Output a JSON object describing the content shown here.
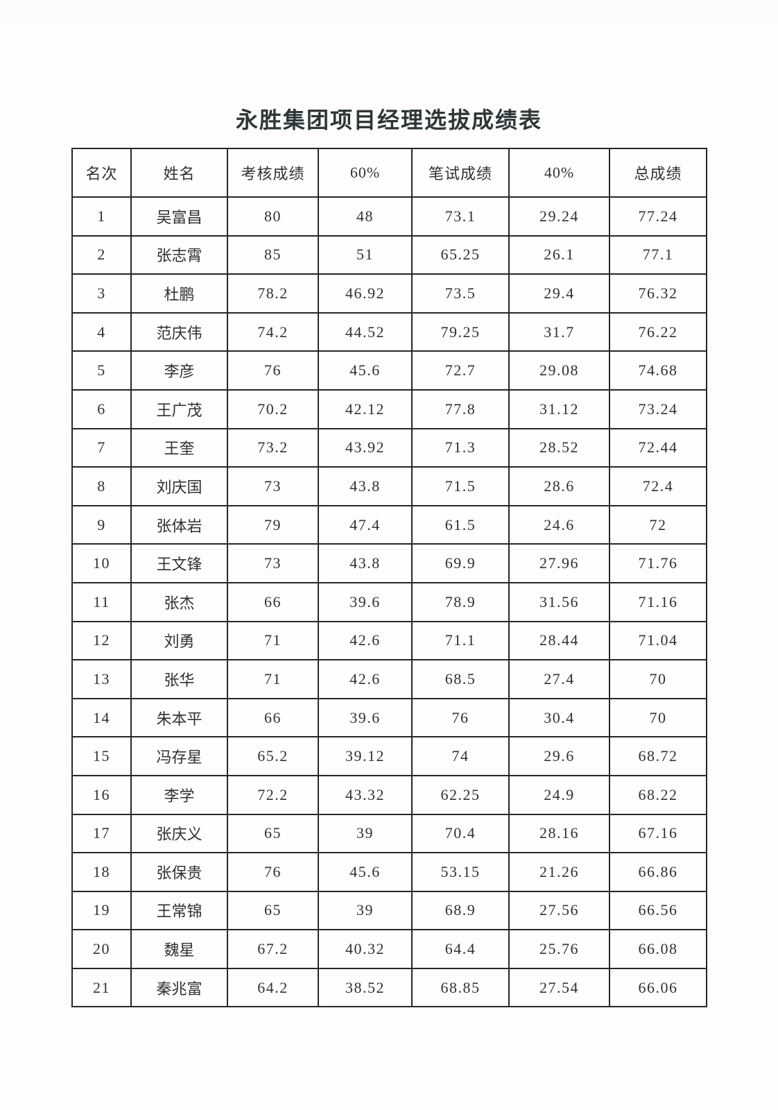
{
  "page": {
    "title": "永胜集团项目经理选拔成绩表"
  },
  "colors": {
    "paper": "#fdfdfd",
    "ink": "#303030",
    "border": "#262626"
  },
  "table": {
    "columns": [
      "名次",
      "姓名",
      "考核成绩",
      "60%",
      "笔试成绩",
      "40%",
      "总成绩"
    ],
    "rows": [
      [
        "1",
        "吴富昌",
        "80",
        "48",
        "73.1",
        "29.24",
        "77.24"
      ],
      [
        "2",
        "张志霄",
        "85",
        "51",
        "65.25",
        "26.1",
        "77.1"
      ],
      [
        "3",
        "杜鹏",
        "78.2",
        "46.92",
        "73.5",
        "29.4",
        "76.32"
      ],
      [
        "4",
        "范庆伟",
        "74.2",
        "44.52",
        "79.25",
        "31.7",
        "76.22"
      ],
      [
        "5",
        "李彦",
        "76",
        "45.6",
        "72.7",
        "29.08",
        "74.68"
      ],
      [
        "6",
        "王广茂",
        "70.2",
        "42.12",
        "77.8",
        "31.12",
        "73.24"
      ],
      [
        "7",
        "王奎",
        "73.2",
        "43.92",
        "71.3",
        "28.52",
        "72.44"
      ],
      [
        "8",
        "刘庆国",
        "73",
        "43.8",
        "71.5",
        "28.6",
        "72.4"
      ],
      [
        "9",
        "张体岩",
        "79",
        "47.4",
        "61.5",
        "24.6",
        "72"
      ],
      [
        "10",
        "王文锋",
        "73",
        "43.8",
        "69.9",
        "27.96",
        "71.76"
      ],
      [
        "11",
        "张杰",
        "66",
        "39.6",
        "78.9",
        "31.56",
        "71.16"
      ],
      [
        "12",
        "刘勇",
        "71",
        "42.6",
        "71.1",
        "28.44",
        "71.04"
      ],
      [
        "13",
        "张华",
        "71",
        "42.6",
        "68.5",
        "27.4",
        "70"
      ],
      [
        "14",
        "朱本平",
        "66",
        "39.6",
        "76",
        "30.4",
        "70"
      ],
      [
        "15",
        "冯存星",
        "65.2",
        "39.12",
        "74",
        "29.6",
        "68.72"
      ],
      [
        "16",
        "李学",
        "72.2",
        "43.32",
        "62.25",
        "24.9",
        "68.22"
      ],
      [
        "17",
        "张庆义",
        "65",
        "39",
        "70.4",
        "28.16",
        "67.16"
      ],
      [
        "18",
        "张保贵",
        "76",
        "45.6",
        "53.15",
        "21.26",
        "66.86"
      ],
      [
        "19",
        "王常锦",
        "65",
        "39",
        "68.9",
        "27.56",
        "66.56"
      ],
      [
        "20",
        "魏星",
        "67.2",
        "40.32",
        "64.4",
        "25.76",
        "66.08"
      ],
      [
        "21",
        "秦兆富",
        "64.2",
        "38.52",
        "68.85",
        "27.54",
        "66.06"
      ]
    ]
  }
}
